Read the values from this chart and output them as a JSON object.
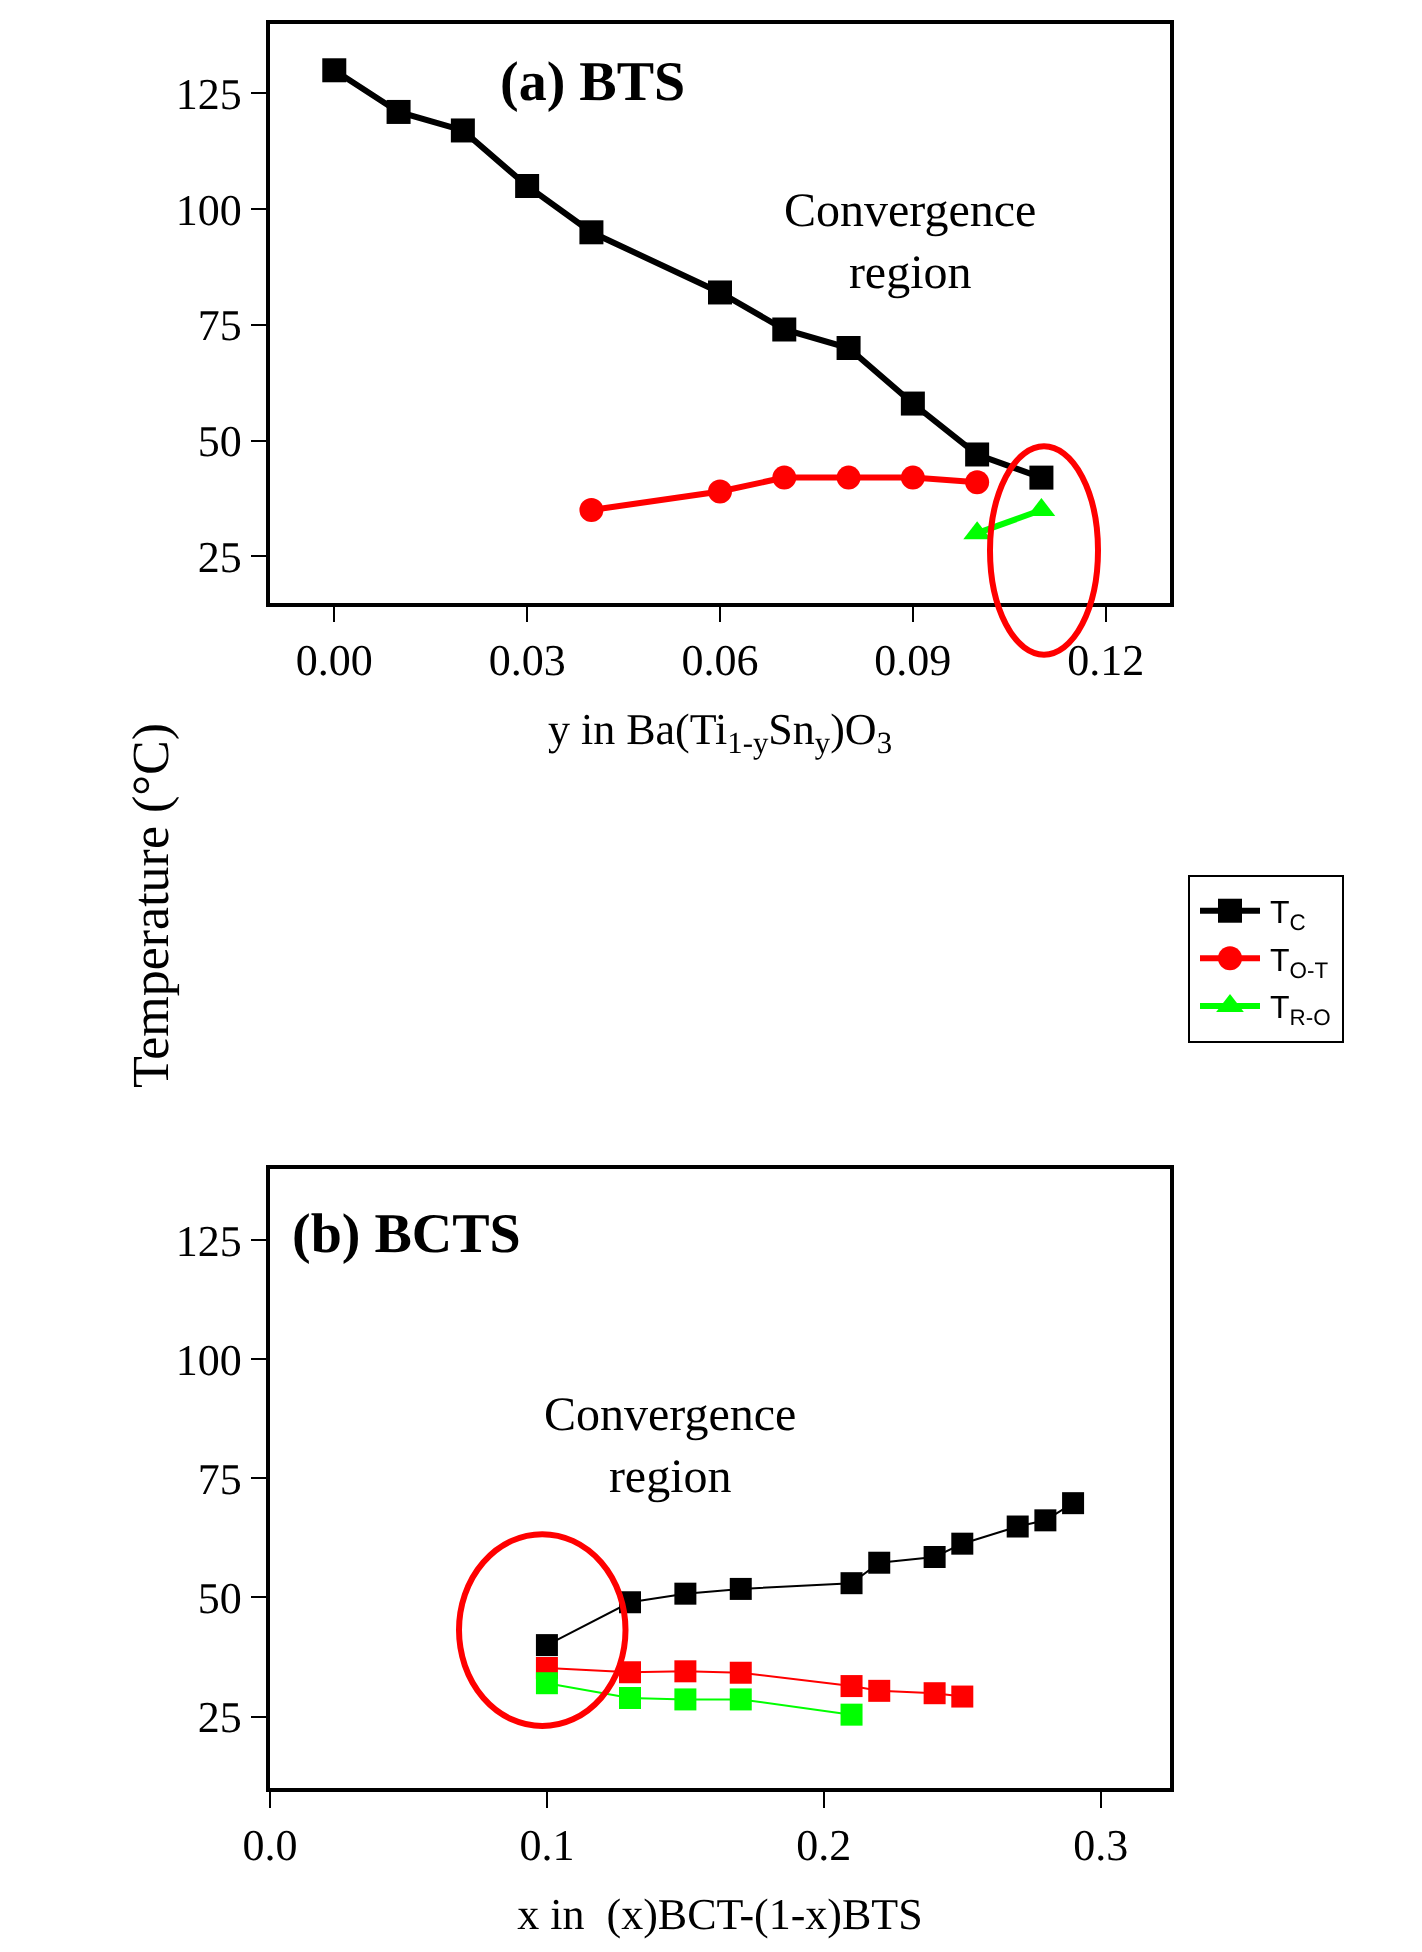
{
  "chart_data": [
    {
      "type": "line",
      "title": "(a) BTS",
      "xlabel": "y in Ba(Ti$_{1-y}$Sn$_{y}$)O$_{3}$",
      "ylabel": "Temperature (°C)",
      "annotations": [
        "Convergence region"
      ],
      "xlim": [
        -0.01,
        0.13
      ],
      "xticks": [
        {
          "value": 0,
          "label": "0.00"
        },
        {
          "value": 0.03,
          "label": "0.03"
        },
        {
          "value": 0.06,
          "label": "0.06"
        },
        {
          "value": 0.09,
          "label": "0.09"
        },
        {
          "value": 0.12,
          "label": "0.12"
        }
      ],
      "ylim": [
        15,
        140
      ],
      "yticks": [
        25,
        50,
        75,
        100,
        125
      ],
      "legend": "right",
      "line_style": "solid",
      "series": [
        {
          "name": "T$_{C}$",
          "color": "#000000",
          "marker": "square",
          "x": [
            0,
            0.01,
            0.02,
            0.03,
            0.04,
            0.06,
            0.07,
            0.08,
            0.09,
            0.1,
            0.11
          ],
          "values": [
            130,
            121,
            117,
            105,
            95,
            82,
            74,
            70,
            58,
            47,
            42
          ]
        },
        {
          "name": "T$_{O-T}$",
          "color": "#ff0000",
          "marker": "circle",
          "x": [
            0.04,
            0.06,
            0.07,
            0.08,
            0.09,
            0.1
          ],
          "values": [
            35,
            39,
            42,
            42,
            42,
            41
          ]
        },
        {
          "name": "T$_{R-O}$",
          "color": "#00ff00",
          "marker": "triangle",
          "x": [
            0.1,
            0.11
          ],
          "values": [
            30,
            35
          ]
        }
      ]
    },
    {
      "type": "line",
      "title": "(b) BCTS",
      "xlabel": "x in  (x)BCT-(1-x)BTS",
      "annotations": [
        "Convergence region"
      ],
      "xlim": [
        0,
        0.325
      ],
      "xticks": [
        {
          "value": 0,
          "label": "0.0"
        },
        {
          "value": 0.1,
          "label": "0.1"
        },
        {
          "value": 0.2,
          "label": "0.2"
        },
        {
          "value": 0.3,
          "label": "0.3"
        }
      ],
      "ylim": [
        10,
        140
      ],
      "yticks": [
        25,
        50,
        75,
        100,
        125
      ],
      "line_style": "solid",
      "series": [
        {
          "color": "#000000",
          "marker": "square",
          "x": [
            0.1,
            0.13,
            0.15,
            0.17,
            0.21,
            0.22,
            0.24,
            0.25,
            0.27,
            0.28,
            0.29
          ],
          "values": [
            40,
            49,
            50.8,
            51.8,
            53,
            57.3,
            58.5,
            61.3,
            64.9,
            66.2,
            69.8
          ]
        },
        {
          "color": "#ff0000",
          "marker": "square",
          "x": [
            0.1,
            0.13,
            0.15,
            0.17,
            0.21,
            0.22,
            0.24,
            0.25
          ],
          "values": [
            35.2,
            34.3,
            34.5,
            34.2,
            31.4,
            30.4,
            29.9,
            29.2
          ]
        },
        {
          "color": "#00ff00",
          "marker": "square",
          "x": [
            0.1,
            0.13,
            0.15,
            0.17,
            0.21
          ],
          "values": [
            32,
            28.9,
            28.6,
            28.6,
            25.4
          ]
        }
      ]
    }
  ]
}
